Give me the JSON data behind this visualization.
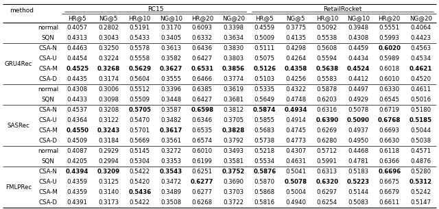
{
  "title_rc15": "RC15",
  "title_rr": "RetailRocket",
  "col_headers": [
    "HR@5",
    "NG@5",
    "HR@10",
    "NG@10",
    "HR@20",
    "NG@20",
    "HR@5",
    "NG@5",
    "HR@10",
    "NG@10",
    "HR@20",
    "NG@20"
  ],
  "method_col": "method",
  "rows": [
    {
      "group": "GRU4Rec",
      "method": "normal",
      "vals": [
        "0.4057",
        "0.2802",
        "0.5191",
        "0.3170",
        "0.6093",
        "0.3398",
        "0.4559",
        "0.3775",
        "0.5092",
        "0.3948",
        "0.5551",
        "0.4064"
      ],
      "bold": [
        false,
        false,
        false,
        false,
        false,
        false,
        false,
        false,
        false,
        false,
        false,
        false
      ]
    },
    {
      "group": "GRU4Rec",
      "method": "SQN",
      "vals": [
        "0.4313",
        "0.3043",
        "0.5433",
        "0.3405",
        "0.6332",
        "0.3634",
        "0.5009",
        "0.4135",
        "0.5538",
        "0.4308",
        "0.5993",
        "0.4423"
      ],
      "bold": [
        false,
        false,
        false,
        false,
        false,
        false,
        false,
        false,
        false,
        false,
        false,
        false
      ]
    },
    {
      "group": "GRU4Rec",
      "method": "CSA-N",
      "vals": [
        "0.4463",
        "0.3250",
        "0.5578",
        "0.3613",
        "0.6436",
        "0.3830",
        "0.5111",
        "0.4298",
        "0.5608",
        "0.4459",
        "0.6020",
        "0.4563"
      ],
      "bold": [
        false,
        false,
        false,
        false,
        false,
        false,
        false,
        false,
        false,
        false,
        true,
        false
      ]
    },
    {
      "group": "GRU4Rec",
      "method": "CSA-U",
      "vals": [
        "0.4454",
        "0.3224",
        "0.5558",
        "0.3582",
        "0.6427",
        "0.3803",
        "0.5075",
        "0.4264",
        "0.5594",
        "0.4434",
        "0.5989",
        "0.4534"
      ],
      "bold": [
        false,
        false,
        false,
        false,
        false,
        false,
        false,
        false,
        false,
        false,
        false,
        false
      ]
    },
    {
      "group": "GRU4Rec",
      "method": "CSA-M",
      "vals": [
        "0.4525",
        "0.3268",
        "0.5629",
        "0.3627",
        "0.6531",
        "0.3856",
        "0.5126",
        "0.4358",
        "0.5638",
        "0.4524",
        "0.6018",
        "0.4621"
      ],
      "bold": [
        true,
        true,
        true,
        true,
        true,
        true,
        true,
        true,
        true,
        true,
        false,
        true
      ]
    },
    {
      "group": "GRU4Rec",
      "method": "CSA-D",
      "vals": [
        "0.4435",
        "0.3174",
        "0.5604",
        "0.3555",
        "0.6466",
        "0.3774",
        "0.5103",
        "0.4256",
        "0.5583",
        "0.4412",
        "0.6010",
        "0.4520"
      ],
      "bold": [
        false,
        false,
        false,
        false,
        false,
        false,
        false,
        false,
        false,
        false,
        false,
        false
      ]
    },
    {
      "group": "SASRec",
      "method": "normal",
      "vals": [
        "0.4308",
        "0.3006",
        "0.5512",
        "0.3396",
        "0.6385",
        "0.3619",
        "0.5335",
        "0.4322",
        "0.5878",
        "0.4497",
        "0.6330",
        "0.4611"
      ],
      "bold": [
        false,
        false,
        false,
        false,
        false,
        false,
        false,
        false,
        false,
        false,
        false,
        false
      ]
    },
    {
      "group": "SASRec",
      "method": "SQN",
      "vals": [
        "0.4433",
        "0.3098",
        "0.5509",
        "0.3448",
        "0.6427",
        "0.3681",
        "0.5649",
        "0.4748",
        "0.6203",
        "0.4929",
        "0.6545",
        "0.5016"
      ],
      "bold": [
        false,
        false,
        false,
        false,
        false,
        false,
        false,
        false,
        false,
        false,
        false,
        false
      ]
    },
    {
      "group": "SASRec",
      "method": "CSA-N",
      "vals": [
        "0.4537",
        "0.3208",
        "0.5705",
        "0.3587",
        "0.6598",
        "0.3812",
        "0.5874",
        "0.4934",
        "0.6316",
        "0.5078",
        "0.6719",
        "0.5180"
      ],
      "bold": [
        false,
        false,
        true,
        false,
        true,
        false,
        true,
        true,
        false,
        false,
        false,
        false
      ]
    },
    {
      "group": "SASRec",
      "method": "CSA-U",
      "vals": [
        "0.4364",
        "0.3122",
        "0.5470",
        "0.3482",
        "0.6346",
        "0.3705",
        "0.5855",
        "0.4914",
        "0.6390",
        "0.5090",
        "0.6768",
        "0.5185"
      ],
      "bold": [
        false,
        false,
        false,
        false,
        false,
        false,
        false,
        false,
        true,
        true,
        true,
        true
      ]
    },
    {
      "group": "SASRec",
      "method": "CSA-M",
      "vals": [
        "0.4550",
        "0.3243",
        "0.5701",
        "0.3617",
        "0.6535",
        "0.3828",
        "0.5683",
        "0.4745",
        "0.6269",
        "0.4937",
        "0.6693",
        "0.5044"
      ],
      "bold": [
        true,
        true,
        false,
        true,
        false,
        true,
        false,
        false,
        false,
        false,
        false,
        false
      ]
    },
    {
      "group": "SASRec",
      "method": "CSA-D",
      "vals": [
        "0.4509",
        "0.3184",
        "0.5669",
        "0.3561",
        "0.6574",
        "0.3792",
        "0.5738",
        "0.4773",
        "0.6280",
        "0.4950",
        "0.6630",
        "0.5038"
      ],
      "bold": [
        false,
        false,
        false,
        false,
        false,
        false,
        false,
        false,
        false,
        false,
        false,
        false
      ]
    },
    {
      "group": "FMLPRec",
      "method": "normal",
      "vals": [
        "0.4087",
        "0.2929",
        "0.5145",
        "0.3272",
        "0.6010",
        "0.3493",
        "0.5218",
        "0.4307",
        "0.5712",
        "0.4468",
        "0.6118",
        "0.4571"
      ],
      "bold": [
        false,
        false,
        false,
        false,
        false,
        false,
        false,
        false,
        false,
        false,
        false,
        false
      ]
    },
    {
      "group": "FMLPRec",
      "method": "SQN",
      "vals": [
        "0.4205",
        "0.2994",
        "0.5304",
        "0.3353",
        "0.6199",
        "0.3581",
        "0.5534",
        "0.4631",
        "0.5991",
        "0.4781",
        "0.6366",
        "0.4876"
      ],
      "bold": [
        false,
        false,
        false,
        false,
        false,
        false,
        false,
        false,
        false,
        false,
        false,
        false
      ]
    },
    {
      "group": "FMLPRec",
      "method": "CSA-N",
      "vals": [
        "0.4394",
        "0.3209",
        "0.5422",
        "0.3543",
        "0.6251",
        "0.3752",
        "0.5876",
        "0.5041",
        "0.6313",
        "0.5183",
        "0.6696",
        "0.5280"
      ],
      "bold": [
        true,
        true,
        false,
        true,
        false,
        true,
        true,
        false,
        false,
        false,
        true,
        false
      ]
    },
    {
      "group": "FMLPRec",
      "method": "CSA-U",
      "vals": [
        "0.4359",
        "0.3125",
        "0.5420",
        "0.3472",
        "0.6277",
        "0.3690",
        "0.5870",
        "0.5078",
        "0.6320",
        "0.5223",
        "0.6675",
        "0.5312"
      ],
      "bold": [
        false,
        false,
        false,
        false,
        true,
        false,
        false,
        true,
        true,
        true,
        false,
        true
      ]
    },
    {
      "group": "FMLPRec",
      "method": "CSA-M",
      "vals": [
        "0.4359",
        "0.3140",
        "0.5436",
        "0.3489",
        "0.6277",
        "0.3703",
        "0.5868",
        "0.5004",
        "0.6297",
        "0.5144",
        "0.6679",
        "0.5242"
      ],
      "bold": [
        false,
        false,
        true,
        false,
        false,
        false,
        false,
        false,
        false,
        false,
        false,
        false
      ]
    },
    {
      "group": "FMLPRec",
      "method": "CSA-D",
      "vals": [
        "0.4391",
        "0.3173",
        "0.5422",
        "0.3508",
        "0.6268",
        "0.3722",
        "0.5816",
        "0.4940",
        "0.6254",
        "0.5083",
        "0.6611",
        "0.5147"
      ],
      "bold": [
        false,
        false,
        false,
        false,
        false,
        false,
        false,
        false,
        false,
        false,
        false,
        false
      ]
    }
  ],
  "group_separators_after": [
    1,
    5,
    7,
    11,
    13
  ],
  "bg_color": "#ffffff",
  "text_color": "#000000",
  "font_size": 6.2,
  "header_font_size": 6.5
}
